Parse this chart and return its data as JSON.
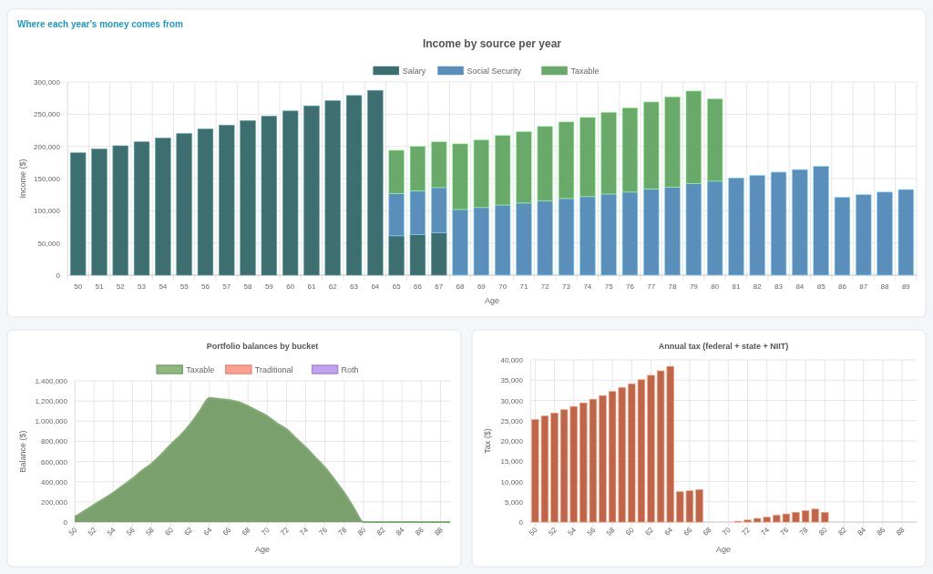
{
  "chart_data": [
    {
      "type": "bar",
      "title": "Income by source per year",
      "annotations": [
        "Where each year's money comes from"
      ],
      "xlabel": "Age",
      "ylabel": "Income ($)",
      "stacked": true,
      "legend": "top",
      "grid": true,
      "categories": [
        "50",
        "51",
        "52",
        "53",
        "54",
        "55",
        "56",
        "57",
        "58",
        "59",
        "60",
        "61",
        "62",
        "63",
        "64",
        "65",
        "66",
        "67",
        "68",
        "69",
        "70",
        "71",
        "72",
        "73",
        "74",
        "75",
        "76",
        "77",
        "78",
        "79",
        "80",
        "81",
        "82",
        "83",
        "84",
        "85",
        "86",
        "87",
        "88",
        "89"
      ],
      "ylim": [
        0,
        300000
      ],
      "yticks": [
        {
          "value": 0,
          "label": "0"
        },
        {
          "value": 50000,
          "label": "50,000"
        },
        {
          "value": 100000,
          "label": "100,000"
        },
        {
          "value": 150000,
          "label": "150,000"
        },
        {
          "value": 200000,
          "label": "200,000"
        },
        {
          "value": 250000,
          "label": "250,000"
        },
        {
          "value": 300000,
          "label": "300,000"
        }
      ],
      "series": [
        {
          "name": "Salary",
          "color": "#3d6e70",
          "values": [
            190000,
            196000,
            201000,
            207000,
            213000,
            220000,
            227000,
            233000,
            240000,
            247000,
            255000,
            263000,
            271000,
            279000,
            287000,
            61000,
            63000,
            66000,
            0,
            0,
            0,
            0,
            0,
            0,
            0,
            0,
            0,
            0,
            0,
            0,
            0,
            0,
            0,
            0,
            0,
            0,
            0,
            0,
            0,
            0
          ]
        },
        {
          "name": "Social Security",
          "color": "#5b8fbb",
          "values": [
            0,
            0,
            0,
            0,
            0,
            0,
            0,
            0,
            0,
            0,
            0,
            0,
            0,
            0,
            0,
            66000,
            68000,
            70000,
            102000,
            105000,
            109000,
            112000,
            115000,
            119000,
            122000,
            126000,
            129000,
            134000,
            137000,
            142000,
            146000,
            151000,
            155000,
            160000,
            164000,
            169000,
            121000,
            125000,
            129000,
            133000
          ]
        },
        {
          "name": "Taxable",
          "color": "#69a96a",
          "values": [
            0,
            0,
            0,
            0,
            0,
            0,
            0,
            0,
            0,
            0,
            0,
            0,
            0,
            0,
            0,
            67000,
            69000,
            71000,
            102000,
            105000,
            108000,
            111000,
            116000,
            119000,
            123000,
            127000,
            131000,
            135000,
            140000,
            144000,
            128000,
            0,
            0,
            0,
            0,
            0,
            0,
            0,
            0,
            0
          ]
        }
      ]
    },
    {
      "type": "area",
      "title": "Portfolio balances by bucket",
      "xlabel": "Age",
      "ylabel": "Balance ($)",
      "legend": "top",
      "grid": true,
      "categories": [
        "50",
        null,
        "52",
        null,
        "54",
        null,
        "56",
        null,
        "58",
        null,
        "60",
        null,
        "62",
        null,
        "64",
        null,
        "66",
        null,
        "68",
        null,
        "70",
        null,
        "72",
        null,
        "74",
        null,
        "76",
        null,
        "78",
        null,
        "80",
        null,
        "82",
        null,
        "84",
        null,
        "86",
        null,
        "88",
        null
      ],
      "ylim": [
        0,
        1400000
      ],
      "yticks": [
        {
          "value": 0,
          "label": "0"
        },
        {
          "value": 200000,
          "label": "200,000"
        },
        {
          "value": 400000,
          "label": "400,000"
        },
        {
          "value": 600000,
          "label": "600,000"
        },
        {
          "value": 800000,
          "label": "800,000"
        },
        {
          "value": 1000000,
          "label": "1,000,000"
        },
        {
          "value": 1200000,
          "label": "1,200,000"
        },
        {
          "value": 1400000,
          "label": "1,400,000"
        }
      ],
      "series": [
        {
          "name": "Taxable",
          "color": "#7aa06e",
          "values": [
            50000,
            110000,
            170000,
            230000,
            290000,
            360000,
            430000,
            510000,
            580000,
            670000,
            770000,
            860000,
            970000,
            1100000,
            1230000,
            1220000,
            1210000,
            1190000,
            1150000,
            1100000,
            1050000,
            980000,
            920000,
            830000,
            740000,
            640000,
            540000,
            420000,
            290000,
            140000,
            0,
            0,
            0,
            0,
            0,
            0,
            0,
            0,
            0,
            0
          ]
        },
        {
          "name": "Traditional",
          "color": "#e58a7c",
          "values": [
            null,
            null,
            null,
            null,
            null,
            null,
            null,
            null,
            null,
            null,
            null,
            null,
            null,
            null,
            null,
            null,
            null,
            null,
            null,
            null,
            null,
            null,
            null,
            null,
            null,
            null,
            null,
            null,
            null,
            null,
            null,
            null,
            null,
            null,
            null,
            null,
            null,
            null,
            null,
            null
          ]
        },
        {
          "name": "Roth",
          "color": "#a98bd1",
          "values": [
            null,
            null,
            null,
            null,
            null,
            null,
            null,
            null,
            null,
            null,
            null,
            null,
            null,
            null,
            null,
            null,
            null,
            null,
            null,
            null,
            null,
            null,
            null,
            null,
            null,
            null,
            null,
            null,
            null,
            null,
            null,
            null,
            null,
            null,
            null,
            null,
            null,
            null,
            null,
            null
          ]
        }
      ]
    },
    {
      "type": "bar",
      "title": "Annual tax (federal + state + NIIT)",
      "xlabel": "Age",
      "ylabel": "Tax ($)",
      "grid": true,
      "categories": [
        "50",
        null,
        "52",
        null,
        "54",
        null,
        "56",
        null,
        "58",
        null,
        "60",
        null,
        "62",
        null,
        "64",
        null,
        "66",
        null,
        "68",
        null,
        "70",
        null,
        "72",
        null,
        "74",
        null,
        "76",
        null,
        "78",
        null,
        "80",
        null,
        "82",
        null,
        "84",
        null,
        "86",
        null,
        "88",
        null
      ],
      "ylim": [
        0,
        40000
      ],
      "yticks": [
        {
          "value": 0,
          "label": "0"
        },
        {
          "value": 5000,
          "label": "5,000"
        },
        {
          "value": 10000,
          "label": "10,000"
        },
        {
          "value": 15000,
          "label": "15,000"
        },
        {
          "value": 20000,
          "label": "20,000"
        },
        {
          "value": 25000,
          "label": "25,000"
        },
        {
          "value": 30000,
          "label": "30,000"
        },
        {
          "value": 35000,
          "label": "35,000"
        },
        {
          "value": 40000,
          "label": "40,000"
        }
      ],
      "series": [
        {
          "color": "#c0654a",
          "values": [
            25300,
            26200,
            26900,
            27700,
            28500,
            29400,
            30300,
            31200,
            32200,
            33200,
            34100,
            35100,
            36200,
            37300,
            38400,
            7500,
            7700,
            8000,
            0,
            0,
            0,
            200,
            500,
            900,
            1200,
            1700,
            2000,
            2400,
            2800,
            3200,
            2400,
            0,
            0,
            0,
            0,
            0,
            0,
            0,
            0,
            0
          ]
        }
      ]
    }
  ]
}
